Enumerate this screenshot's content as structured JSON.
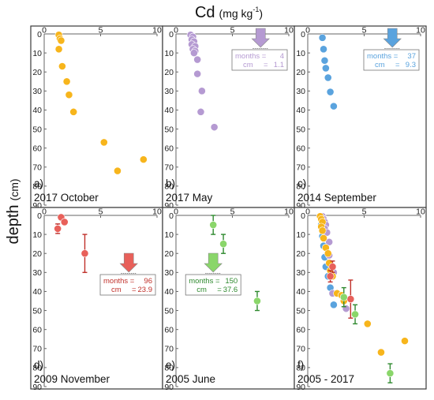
{
  "figure": {
    "title_main": "Cd",
    "title_unit_pre": "(mg kg",
    "title_unit_sup": "-1",
    "title_unit_post": ")",
    "ylabel_main": "depth",
    "ylabel_unit": "(cm)"
  },
  "colors": {
    "oct2017": "#f7b51c",
    "may2017": "#b59ad2",
    "sep2014": "#5aa3de",
    "nov2009": "#e8605a",
    "jun2005": "#8ad66a",
    "nov2009_err": "#c0302a",
    "jun2005_err": "#2f8a2f"
  },
  "chart_data": [
    {
      "panel": "a",
      "label": "a)",
      "caption": "2017 October",
      "type": "scatter",
      "xlim": [
        0,
        10
      ],
      "ylim": [
        0,
        90
      ],
      "y_inverted": true,
      "xticks": [
        0,
        5,
        10
      ],
      "yticks": [
        0,
        10,
        20,
        30,
        40,
        50,
        60,
        70,
        80,
        90
      ],
      "series": [
        {
          "color_key": "oct2017",
          "points": [
            {
              "x": 1.3,
              "y": 0.5
            },
            {
              "x": 1.4,
              "y": 2.5
            },
            {
              "x": 1.5,
              "y": 3.5
            },
            {
              "x": 1.3,
              "y": 8
            },
            {
              "x": 1.6,
              "y": 17
            },
            {
              "x": 2.0,
              "y": 25
            },
            {
              "x": 2.2,
              "y": 32
            },
            {
              "x": 2.6,
              "y": 41
            },
            {
              "x": 5.3,
              "y": 57
            },
            {
              "x": 6.5,
              "y": 72
            },
            {
              "x": 8.8,
              "y": 66
            }
          ]
        }
      ]
    },
    {
      "panel": "b",
      "label": "b)",
      "caption": "2017 May",
      "type": "scatter",
      "xlim": [
        0,
        10
      ],
      "ylim": [
        0,
        90
      ],
      "y_inverted": true,
      "xticks": [
        0,
        5,
        10
      ],
      "yticks": [
        0,
        10,
        20,
        30,
        40,
        50,
        60,
        70,
        80,
        90
      ],
      "series": [
        {
          "color_key": "may2017",
          "points": [
            {
              "x": 1.3,
              "y": 0.5
            },
            {
              "x": 1.5,
              "y": 1.5
            },
            {
              "x": 1.4,
              "y": 3
            },
            {
              "x": 1.6,
              "y": 4
            },
            {
              "x": 1.4,
              "y": 5.5
            },
            {
              "x": 1.7,
              "y": 6.5
            },
            {
              "x": 1.5,
              "y": 8
            },
            {
              "x": 1.7,
              "y": 9
            },
            {
              "x": 1.6,
              "y": 10
            },
            {
              "x": 1.9,
              "y": 13.5
            },
            {
              "x": 1.9,
              "y": 21
            },
            {
              "x": 2.3,
              "y": 30
            },
            {
              "x": 2.2,
              "y": 41
            },
            {
              "x": 3.4,
              "y": 49
            }
          ]
        }
      ],
      "annotation": {
        "months_label": "months =",
        "months_value": "4",
        "cm_label": "cm",
        "cm_eq": "=",
        "cm_value": "1.1",
        "arrow_x": 7.5,
        "arrow_color_key": "may2017"
      }
    },
    {
      "panel": "c",
      "label": "c)",
      "caption": "2014 September",
      "type": "scatter",
      "xlim": [
        0,
        10
      ],
      "ylim": [
        0,
        90
      ],
      "y_inverted": true,
      "xticks": [
        0,
        5,
        10
      ],
      "yticks": [
        0,
        10,
        20,
        30,
        40,
        50,
        60,
        70,
        80,
        90
      ],
      "series": [
        {
          "color_key": "sep2014",
          "points": [
            {
              "x": 1.3,
              "y": 2
            },
            {
              "x": 1.4,
              "y": 8
            },
            {
              "x": 1.5,
              "y": 14
            },
            {
              "x": 1.6,
              "y": 18
            },
            {
              "x": 1.8,
              "y": 23
            },
            {
              "x": 2.0,
              "y": 30.5
            },
            {
              "x": 2.3,
              "y": 38
            }
          ]
        }
      ],
      "annotation": {
        "months_label": "months =",
        "months_value": "37",
        "cm_label": "cm",
        "cm_eq": "=",
        "cm_value": "9.3",
        "arrow_x": 7.5,
        "arrow_color_key": "sep2014"
      }
    },
    {
      "panel": "d",
      "label": "d)",
      "caption": "2009 November",
      "type": "scatter",
      "xlim": [
        0,
        10
      ],
      "ylim": [
        0,
        90
      ],
      "y_inverted": true,
      "xticks": [
        0,
        5,
        10
      ],
      "yticks": [
        0,
        10,
        20,
        30,
        40,
        50,
        60,
        70,
        80,
        90
      ],
      "series": [
        {
          "color_key": "nov2009",
          "err_color_key": "nov2009_err",
          "points": [
            {
              "x": 1.5,
              "y": 1
            },
            {
              "x": 1.8,
              "y": 3.5
            },
            {
              "x": 1.2,
              "y": 7,
              "yerr": 2.5
            },
            {
              "x": 3.6,
              "y": 20,
              "yerr": 10
            }
          ]
        }
      ],
      "annotation": {
        "months_label": "months =",
        "months_value": "96",
        "cm_label": "cm",
        "cm_eq": "=",
        "cm_value": "23.9",
        "arrow_x": 7.5,
        "arrow_color_key": "nov2009"
      }
    },
    {
      "panel": "e",
      "label": "e)",
      "caption": "2005 June",
      "type": "scatter",
      "xlim": [
        0,
        10
      ],
      "ylim": [
        0,
        90
      ],
      "y_inverted": true,
      "xticks": [
        0,
        5,
        10
      ],
      "yticks": [
        0,
        10,
        20,
        30,
        40,
        50,
        60,
        70,
        80,
        90
      ],
      "series": [
        {
          "color_key": "jun2005",
          "err_color_key": "jun2005_err",
          "points": [
            {
              "x": 3.3,
              "y": 5,
              "yerr": 5
            },
            {
              "x": 4.2,
              "y": 15,
              "yerr": 5
            },
            {
              "x": 7.2,
              "y": 45,
              "yerr": 5
            }
          ]
        }
      ],
      "annotation": {
        "months_label": "months =",
        "months_value": "150",
        "cm_label": "cm",
        "cm_eq": "=",
        "cm_value": "37.6",
        "arrow_x": 3.3,
        "arrow_color_key": "jun2005"
      }
    },
    {
      "panel": "f",
      "label": "f)",
      "caption": "2005 - 2017",
      "type": "scatter",
      "xlim": [
        0,
        10
      ],
      "ylim": [
        0,
        90
      ],
      "y_inverted": true,
      "xticks": [
        0,
        5,
        10
      ],
      "yticks": [
        0,
        10,
        20,
        30,
        40,
        50,
        60,
        70,
        80,
        90
      ],
      "series": [
        {
          "color_key": "sep2014",
          "points": [
            {
              "x": 1.2,
              "y": 5
            },
            {
              "x": 1.3,
              "y": 11
            },
            {
              "x": 1.4,
              "y": 16
            },
            {
              "x": 1.5,
              "y": 22
            },
            {
              "x": 1.6,
              "y": 27
            },
            {
              "x": 1.8,
              "y": 32
            },
            {
              "x": 2.0,
              "y": 38
            },
            {
              "x": 2.3,
              "y": 47
            }
          ]
        },
        {
          "color_key": "may2017",
          "points": [
            {
              "x": 1.3,
              "y": 0.5
            },
            {
              "x": 1.4,
              "y": 2
            },
            {
              "x": 1.5,
              "y": 3.5
            },
            {
              "x": 1.6,
              "y": 5
            },
            {
              "x": 1.5,
              "y": 7
            },
            {
              "x": 1.7,
              "y": 9
            },
            {
              "x": 1.9,
              "y": 14
            },
            {
              "x": 1.9,
              "y": 21
            },
            {
              "x": 2.3,
              "y": 30
            },
            {
              "x": 2.2,
              "y": 41
            },
            {
              "x": 3.4,
              "y": 49
            }
          ]
        },
        {
          "color_key": "oct2017",
          "points": [
            {
              "x": 1.1,
              "y": 0.5
            },
            {
              "x": 1.2,
              "y": 2
            },
            {
              "x": 1.3,
              "y": 3.5
            },
            {
              "x": 1.2,
              "y": 6
            },
            {
              "x": 1.3,
              "y": 8
            },
            {
              "x": 1.4,
              "y": 12
            },
            {
              "x": 1.6,
              "y": 17
            },
            {
              "x": 1.8,
              "y": 20
            },
            {
              "x": 1.9,
              "y": 25
            },
            {
              "x": 2.0,
              "y": 29
            },
            {
              "x": 2.2,
              "y": 32
            },
            {
              "x": 2.6,
              "y": 41
            },
            {
              "x": 3.0,
              "y": 42
            },
            {
              "x": 3.2,
              "y": 45
            },
            {
              "x": 5.3,
              "y": 57
            },
            {
              "x": 6.5,
              "y": 72
            },
            {
              "x": 8.6,
              "y": 66
            }
          ]
        },
        {
          "color_key": "nov2009",
          "err_color_key": "nov2009_err",
          "points": [
            {
              "x": 2.2,
              "y": 27,
              "yerr": 3
            },
            {
              "x": 2.0,
              "y": 32,
              "yerr": 3
            },
            {
              "x": 3.8,
              "y": 44,
              "yerr": 10
            }
          ]
        },
        {
          "color_key": "jun2005",
          "err_color_key": "jun2005_err",
          "points": [
            {
              "x": 3.2,
              "y": 43,
              "yerr": 5
            },
            {
              "x": 4.2,
              "y": 52,
              "yerr": 5
            },
            {
              "x": 7.3,
              "y": 83,
              "yerr": 5
            }
          ]
        }
      ]
    }
  ]
}
